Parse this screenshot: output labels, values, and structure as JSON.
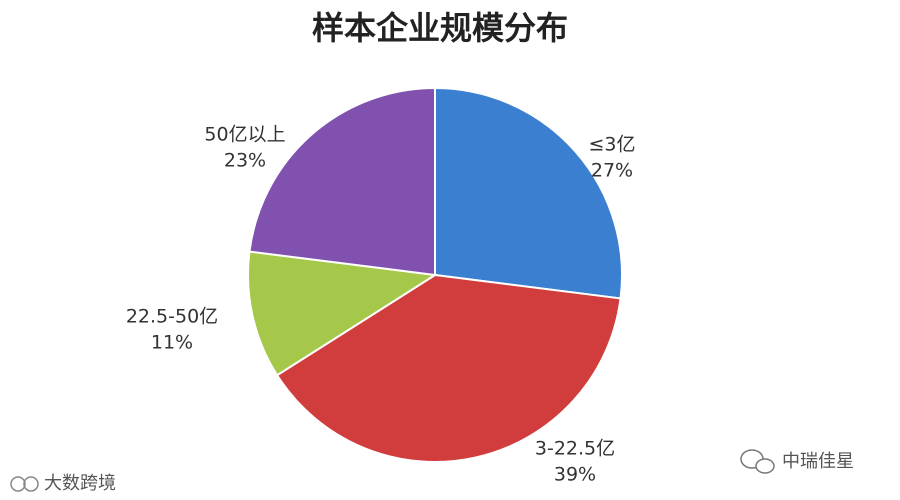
{
  "chart_data": {
    "type": "pie",
    "title": "样本企业规模分布",
    "categories": [
      "≤3亿",
      "3-22.5亿",
      "22.5-50亿",
      "50亿以上"
    ],
    "values": [
      27,
      39,
      11,
      23
    ],
    "value_labels": [
      "27%",
      "39%",
      "11%",
      "23%"
    ],
    "colors": [
      "#3b7fd0",
      "#d13c3c",
      "#a5c84a",
      "#8051ae"
    ]
  },
  "watermarks": [
    "大数跨境",
    "中瑞佳星"
  ]
}
